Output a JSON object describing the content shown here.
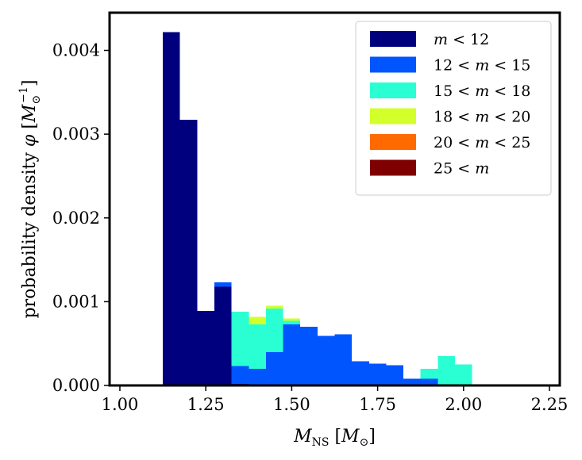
{
  "chart_data": {
    "type": "bar",
    "stacked": true,
    "histogram": true,
    "bin_edges": [
      1.125,
      1.175,
      1.225,
      1.275,
      1.325,
      1.375,
      1.425,
      1.475,
      1.525,
      1.575,
      1.625,
      1.675,
      1.725,
      1.775,
      1.825,
      1.875,
      1.925,
      1.975,
      2.025
    ],
    "series": [
      {
        "name": "m < 12",
        "color": "#00007f",
        "values": [
          0.00422,
          0.00317,
          0.00089,
          0.00118,
          2e-05,
          0.0,
          0.0,
          0.0,
          0.0,
          0.0,
          0.0,
          0.0,
          0.0,
          0.0,
          0.0,
          0.0,
          0.0,
          0.0
        ]
      },
      {
        "name": "12 < m < 15",
        "color": "#0055ff",
        "values": [
          0.0,
          0.0,
          0.0,
          5e-05,
          0.00021,
          0.0002,
          0.0004,
          0.00073,
          0.0007,
          0.00059,
          0.00061,
          0.00029,
          0.00026,
          0.00024,
          8e-05,
          8e-05,
          1e-05,
          0.0
        ]
      },
      {
        "name": "15 < m < 18",
        "color": "#2affd3",
        "values": [
          0.0,
          0.0,
          0.0,
          0.0,
          0.00065,
          0.00053,
          0.00052,
          4e-05,
          0.0,
          0.0,
          0.0,
          0.0,
          0.0,
          0.0,
          0.0,
          0.00012,
          0.00034,
          0.00025
        ]
      },
      {
        "name": "18 < m < 20",
        "color": "#d3ff2a",
        "values": [
          0.0,
          0.0,
          0.0,
          0.0,
          0.0,
          9e-05,
          3e-05,
          3e-05,
          0.0,
          0.0,
          0.0,
          0.0,
          0.0,
          0.0,
          0.0,
          0.0,
          0.0,
          0.0
        ]
      },
      {
        "name": "20 < m < 25",
        "color": "#ff6a00",
        "values": [
          0.0,
          0.0,
          0.0,
          0.0,
          0.0,
          0.0,
          0.0,
          0.0,
          0.0,
          0.0,
          0.0,
          0.0,
          0.0,
          0.0,
          0.0,
          0.0,
          0.0,
          0.0
        ]
      },
      {
        "name": "25 < m",
        "color": "#7f0000",
        "values": [
          0.0,
          0.0,
          0.0,
          0.0,
          0.0,
          0.0,
          0.0,
          0.0,
          0.0,
          0.0,
          0.0,
          0.0,
          0.0,
          0.0,
          0.0,
          0.0,
          0.0,
          0.0
        ]
      }
    ],
    "xlabel": "M_NS [M_⊙]",
    "ylabel": "probability density φ [M_⊙^−1]",
    "xlim": [
      0.97,
      2.28
    ],
    "ylim": [
      0.0,
      0.00445
    ],
    "xticks": [
      1.0,
      1.25,
      1.5,
      1.75,
      2.0,
      2.25
    ],
    "xtick_labels": [
      "1.00",
      "1.25",
      "1.50",
      "1.75",
      "2.00",
      "2.25"
    ],
    "yticks": [
      0.0,
      0.001,
      0.002,
      0.003,
      0.004
    ],
    "ytick_labels": [
      "0.000",
      "0.001",
      "0.002",
      "0.003",
      "0.004"
    ],
    "legend": {
      "placement": "top-right",
      "entries": [
        "m < 12",
        "12 < m < 15",
        "15 < m < 18",
        "18 < m < 20",
        "20 < m < 25",
        "25 < m"
      ]
    },
    "grid": false
  }
}
